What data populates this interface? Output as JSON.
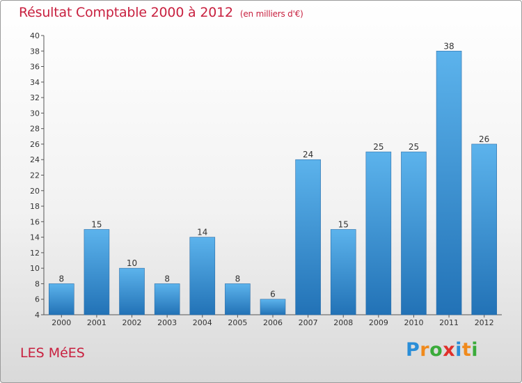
{
  "header": {
    "title": "Résultat Comptable 2000 à 2012",
    "unit": "(en milliers d'€)"
  },
  "footer": {
    "location": "LES MéES",
    "logo": {
      "letters": [
        "P",
        "r",
        "o",
        "x",
        "i",
        "t",
        "i"
      ],
      "colors": [
        "#2a8ed8",
        "#f08a1c",
        "#3aab3a",
        "#e0302a",
        "#2a8ed8",
        "#f08a1c",
        "#3aab3a"
      ]
    }
  },
  "chart_data": {
    "type": "bar",
    "categories": [
      "2000",
      "2001",
      "2002",
      "2003",
      "2004",
      "2005",
      "2006",
      "2007",
      "2008",
      "2009",
      "2010",
      "2011",
      "2012"
    ],
    "values": [
      8,
      15,
      10,
      8,
      14,
      8,
      6,
      24,
      15,
      25,
      25,
      38,
      26
    ],
    "title": "Résultat Comptable 2000 à 2012",
    "xlabel": "",
    "ylabel": "",
    "ylim": [
      4,
      40
    ],
    "yticks": [
      4,
      6,
      8,
      10,
      12,
      14,
      16,
      18,
      20,
      22,
      24,
      26,
      28,
      30,
      32,
      34,
      36,
      38,
      40
    ],
    "grid": false,
    "bar_color": "#3d8fd6"
  }
}
